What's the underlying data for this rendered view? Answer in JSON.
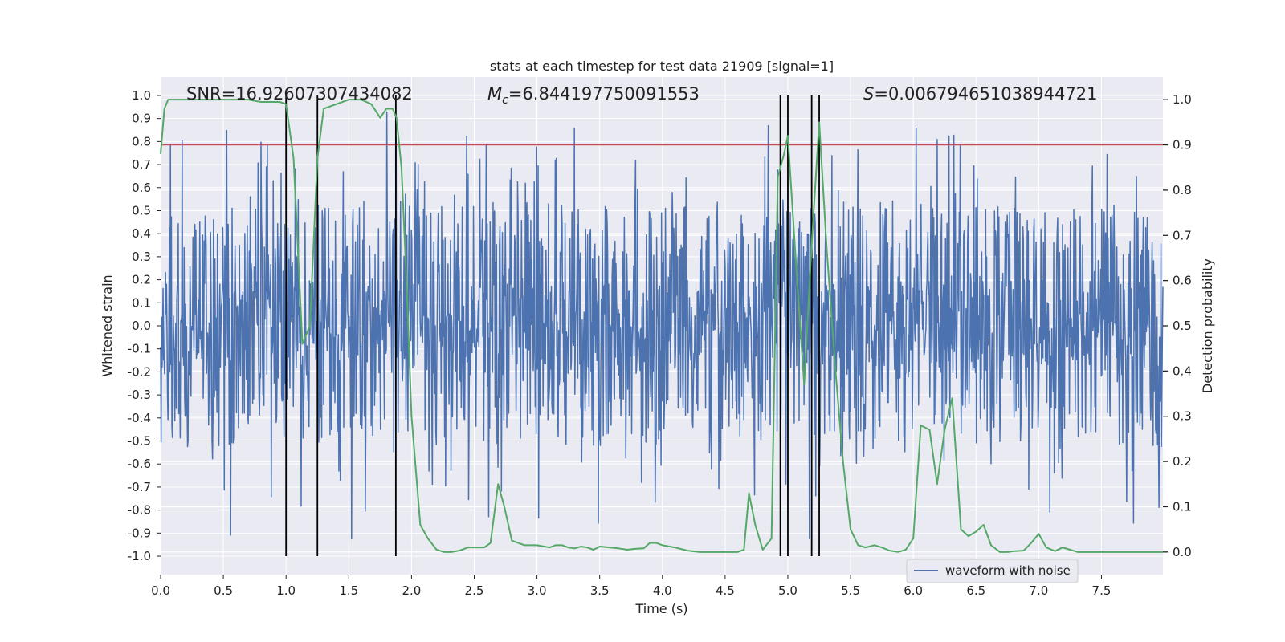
{
  "chart_data": {
    "type": "line",
    "title": "stats at each timestep for test data 21909 [signal=1]",
    "xlabel": "Time (s)",
    "ylabel_left": "Whitened strain",
    "ylabel_right": "Detection probability",
    "xlim": [
      0,
      7.99
    ],
    "ylim_left": [
      -1.08,
      1.08
    ],
    "ylim_right": [
      -0.05,
      1.05
    ],
    "x_ticks": [
      "0.0",
      "0.5",
      "1.0",
      "1.5",
      "2.0",
      "2.5",
      "3.0",
      "3.5",
      "4.0",
      "4.5",
      "5.0",
      "5.5",
      "6.0",
      "6.5",
      "7.0",
      "7.5"
    ],
    "y_left_ticks": [
      "1.0",
      "0.9",
      "0.8",
      "0.7",
      "0.6",
      "0.5",
      "0.4",
      "0.3",
      "0.2",
      "0.1",
      "0.0",
      "-0.1",
      "-0.2",
      "-0.3",
      "-0.4",
      "-0.5",
      "-0.6",
      "-0.7",
      "-0.8",
      "-0.9",
      "-1.0"
    ],
    "y_right_ticks": [
      "1.0",
      "0.9",
      "0.8",
      "0.7",
      "0.6",
      "0.5",
      "0.4",
      "0.3",
      "0.2",
      "0.1",
      "0.0"
    ],
    "annotations": {
      "snr": "SNR=16.92607307434082",
      "mc_symbol": "M",
      "mc_sub": "c",
      "mc_value": "=6.844197750091553",
      "s_symbol": "S",
      "s_value": "=0.006794651038944721"
    },
    "legend": {
      "label": "waveform with noise",
      "position": "lower-right"
    },
    "threshold": {
      "value": 0.9,
      "axis": "right",
      "color": "#c44e52"
    },
    "vertical_markers": [
      1.0,
      1.25,
      1.875,
      4.94,
      5.0,
      5.19,
      5.25
    ],
    "series": [
      {
        "name": "waveform with noise",
        "axis": "left",
        "color": "#4c72b0",
        "samples": 2048,
        "envelope": {
          "core_amplitude": 0.3,
          "spike_max": 1.0
        }
      },
      {
        "name": "detection probability",
        "axis": "right",
        "color": "#55a868",
        "x": [
          0.0,
          0.03,
          0.06,
          0.12,
          0.25,
          0.4,
          0.55,
          0.7,
          0.8,
          0.95,
          1.0,
          1.06,
          1.13,
          1.19,
          1.25,
          1.3,
          1.4,
          1.5,
          1.6,
          1.68,
          1.75,
          1.8,
          1.85,
          1.88,
          1.92,
          1.96,
          2.0,
          2.07,
          2.13,
          2.2,
          2.26,
          2.32,
          2.38,
          2.45,
          2.5,
          2.58,
          2.63,
          2.69,
          2.74,
          2.8,
          2.9,
          3.0,
          3.1,
          3.15,
          3.2,
          3.25,
          3.3,
          3.35,
          3.4,
          3.45,
          3.5,
          3.58,
          3.65,
          3.72,
          3.78,
          3.85,
          3.9,
          3.95,
          4.0,
          4.1,
          4.2,
          4.3,
          4.4,
          4.5,
          4.6,
          4.65,
          4.69,
          4.74,
          4.8,
          4.87,
          4.92,
          4.97,
          5.0,
          5.06,
          5.13,
          5.19,
          5.25,
          5.31,
          5.38,
          5.44,
          5.5,
          5.56,
          5.62,
          5.69,
          5.75,
          5.81,
          5.88,
          5.94,
          6.0,
          6.06,
          6.13,
          6.19,
          6.25,
          6.31,
          6.38,
          6.44,
          6.5,
          6.56,
          6.62,
          6.69,
          6.75,
          6.81,
          6.88,
          6.94,
          7.0,
          7.06,
          7.13,
          7.19,
          7.25,
          7.31,
          7.4,
          7.5,
          7.6,
          7.7,
          7.8,
          7.9,
          7.99
        ],
        "y": [
          0.88,
          0.98,
          1.0,
          1.0,
          1.0,
          1.0,
          1.0,
          1.0,
          0.995,
          0.995,
          0.99,
          0.87,
          0.46,
          0.5,
          0.87,
          0.98,
          0.99,
          1.0,
          1.0,
          0.99,
          0.96,
          0.98,
          0.98,
          0.96,
          0.85,
          0.6,
          0.3,
          0.06,
          0.03,
          0.005,
          0.0,
          0.0,
          0.003,
          0.01,
          0.01,
          0.01,
          0.02,
          0.15,
          0.1,
          0.025,
          0.015,
          0.015,
          0.01,
          0.015,
          0.015,
          0.01,
          0.008,
          0.012,
          0.01,
          0.005,
          0.012,
          0.01,
          0.008,
          0.005,
          0.007,
          0.008,
          0.02,
          0.02,
          0.015,
          0.01,
          0.003,
          0.0,
          0.0,
          0.0,
          0.0,
          0.005,
          0.13,
          0.06,
          0.005,
          0.03,
          0.83,
          0.88,
          0.92,
          0.66,
          0.37,
          0.68,
          0.95,
          0.67,
          0.4,
          0.2,
          0.05,
          0.015,
          0.01,
          0.015,
          0.01,
          0.003,
          0.0,
          0.005,
          0.03,
          0.28,
          0.27,
          0.15,
          0.27,
          0.34,
          0.05,
          0.035,
          0.045,
          0.06,
          0.015,
          0.0,
          0.0,
          0.002,
          0.003,
          0.02,
          0.04,
          0.01,
          0.002,
          0.01,
          0.005,
          0.0,
          0.0,
          0.0,
          0.0,
          0.0,
          0.0,
          0.0,
          0.0
        ]
      }
    ]
  }
}
